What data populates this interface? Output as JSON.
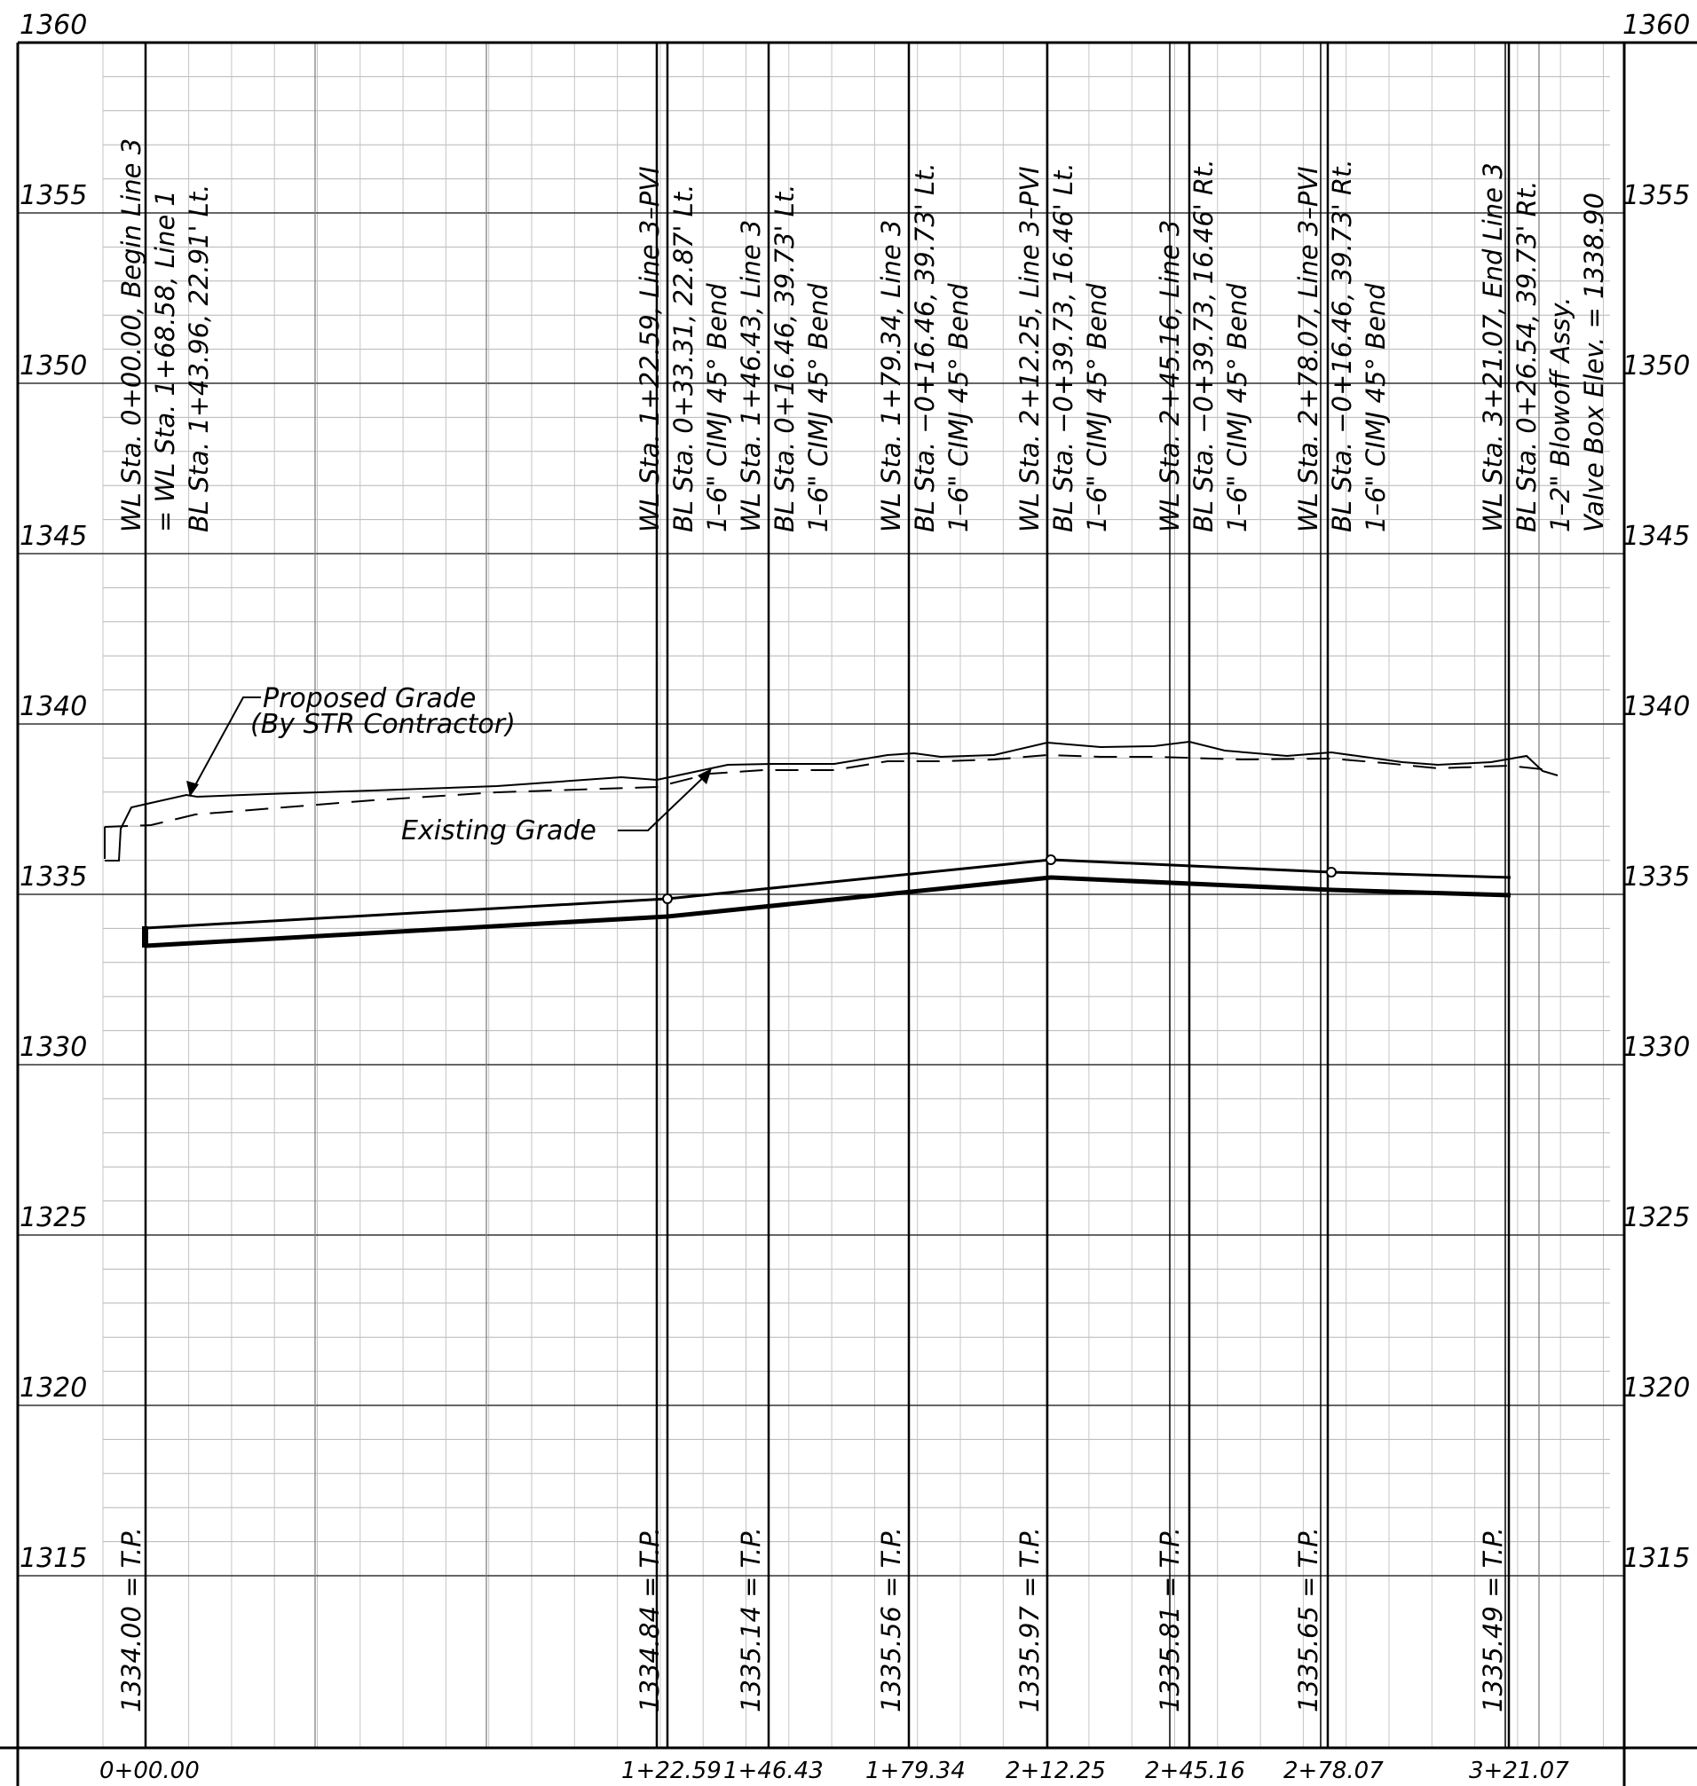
{
  "elevation_labels": [
    "1360",
    "1355",
    "1350",
    "1345",
    "1340",
    "1335",
    "1330",
    "1325",
    "1320",
    "1315"
  ],
  "station_labels": [
    "0+00.00",
    "1+22.59",
    "1+46.43",
    "1+79.34",
    "2+12.25",
    "2+45.16",
    "2+78.07",
    "3+21.07"
  ],
  "annotations": {
    "a0": [
      "WL Sta. 0+00.00, Begin Line 3",
      "= WL Sta. 1+68.58, Line 1",
      "BL Sta. 1+43.96, 22.91' Lt."
    ],
    "a1": [
      "WL Sta. 1+22.59, Line 3–PVI",
      "BL Sta. 0+33.31, 22.87' Lt.",
      "1–6\" CIMJ 45° Bend"
    ],
    "a2": [
      "WL Sta. 1+46.43, Line 3",
      "BL Sta. 0+16.46, 39.73' Lt.",
      "1–6\" CIMJ 45° Bend"
    ],
    "a3": [
      "WL Sta. 1+79.34, Line 3",
      "BL Sta. −0+16.46, 39.73' Lt.",
      "1–6\" CIMJ 45° Bend"
    ],
    "a4": [
      "WL Sta. 2+12.25, Line 3–PVI",
      "BL Sta. −0+39.73, 16.46' Lt.",
      "1–6\" CIMJ 45° Bend"
    ],
    "a5": [
      "WL Sta. 2+45.16, Line 3",
      "BL Sta. −0+39.73, 16.46' Rt.",
      "1–6\" CIMJ 45° Bend"
    ],
    "a6": [
      "WL Sta. 2+78.07, Line 3–PVI",
      "BL Sta. −0+16.46, 39.73' Rt.",
      "1–6\" CIMJ 45° Bend"
    ],
    "a7": [
      "WL Sta. 3+21.07, End Line 3",
      "BL Sta. 0+26.54, 39.73' Rt.",
      "1–2\" Blowoff Assy.",
      "Valve Box Elev. = 1338.90"
    ]
  },
  "top_of_pipe": [
    "1334.00 = T.P.",
    "1334.84 = T.P.",
    "1335.14 = T.P.",
    "1335.56 = T.P.",
    "1335.97 = T.P.",
    "1335.81 = T.P.",
    "1335.65 = T.P.",
    "1335.49 = T.P."
  ],
  "callouts": {
    "proposed_grade_1": "Proposed Grade",
    "proposed_grade_2": "(By STR Contractor)",
    "existing_grade": "Existing Grade"
  }
}
